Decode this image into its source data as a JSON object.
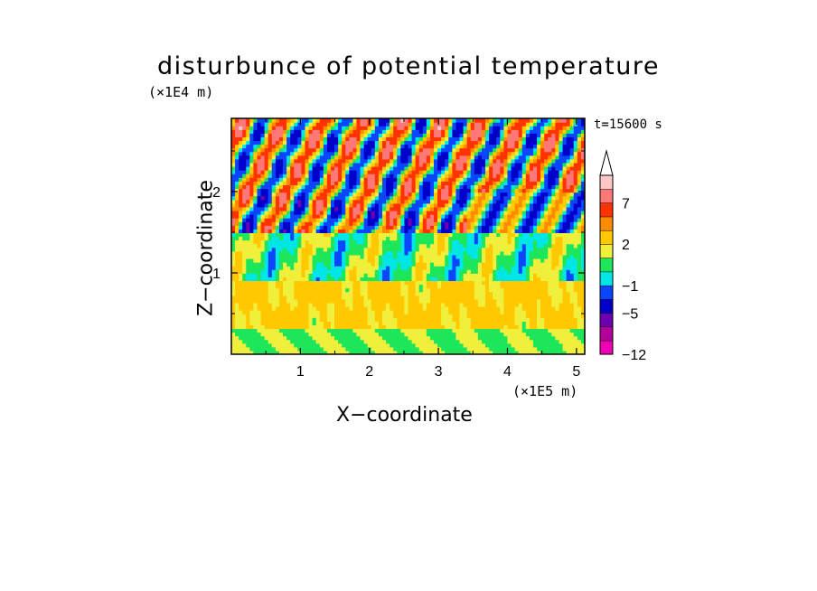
{
  "chart_data": {
    "type": "heatmap",
    "title": "disturbunce of potential temperature",
    "xlabel": "X−coordinate",
    "ylabel": "Z−coordinate",
    "x_unit": "(×1E5 m)",
    "y_unit": "(×1E4 m)",
    "time_label": "t=15600 s",
    "xlim": [
      0,
      5.12
    ],
    "ylim": [
      0,
      2.9
    ],
    "x_ticks": [
      1,
      2,
      3,
      4,
      5
    ],
    "x_tick_labels": [
      "1",
      "2",
      "3",
      "4",
      "5"
    ],
    "y_ticks": [
      1,
      2
    ],
    "y_tick_labels": [
      "1",
      "2"
    ],
    "colorbar": {
      "levels": [
        -12,
        -9,
        -7,
        -5,
        -3,
        -1,
        0,
        1,
        2,
        4,
        5,
        7,
        9
      ],
      "labels": [
        {
          "value": -12,
          "text": "−12"
        },
        {
          "value": -5,
          "text": "−5"
        },
        {
          "value": -1,
          "text": "−1"
        },
        {
          "value": 2,
          "text": "2"
        },
        {
          "value": 7,
          "text": "7"
        }
      ],
      "colors": [
        "#f000b4",
        "#b4009b",
        "#6e00b4",
        "#0000c8",
        "#0a46ff",
        "#00e6e6",
        "#1ee65a",
        "#f0f03c",
        "#ffc800",
        "#ff8c00",
        "#ff3200",
        "#ff7878",
        "#ffc8c8"
      ],
      "extend": "max"
    },
    "field_regions": [
      {
        "layer": "z 0 to 0.3",
        "dominant_value_range": [
          0,
          2
        ]
      },
      {
        "layer": "z 0.3 to 0.9",
        "dominant_value_range": [
          1,
          4
        ]
      },
      {
        "layer": "z 0.9 to 1.6",
        "dominant_value_range": [
          -1,
          2
        ]
      },
      {
        "layer": "z 1.6 to 2.9",
        "dominant_value_range": [
          -5,
          7
        ]
      }
    ]
  }
}
